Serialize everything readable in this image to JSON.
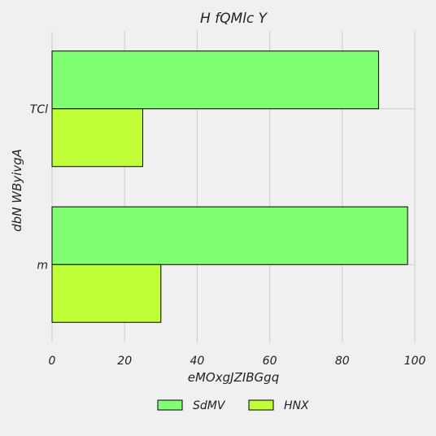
{
  "chart_data": {
    "type": "bar",
    "orientation": "horizontal",
    "title": "H fQMlc Y",
    "xlabel": "eMOxgJZIBGgq",
    "ylabel": "dbN WByivgA",
    "categories": [
      "TCl",
      "m"
    ],
    "series": [
      {
        "name": "SdMV",
        "color": "#80ff73",
        "values": [
          90,
          98
        ]
      },
      {
        "name": "HNX",
        "color": "#c0ff38",
        "values": [
          25,
          30
        ]
      }
    ],
    "xlim": [
      0,
      100
    ],
    "xticks": [
      0,
      20,
      40,
      60,
      80,
      100
    ],
    "grid": true,
    "legend_position": "bottom"
  }
}
